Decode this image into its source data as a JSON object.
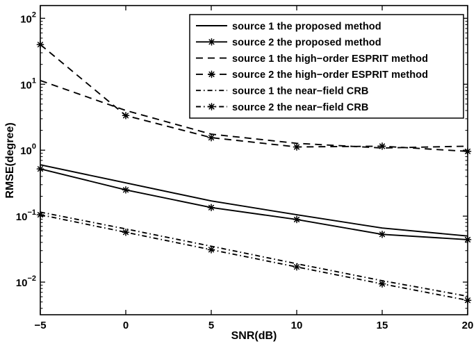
{
  "figure": {
    "background": "#ffffff",
    "line_color": "#000000",
    "xlabel": "SNR(dB)",
    "ylabel": "RMSE(degree)"
  },
  "chart_data": {
    "type": "line",
    "title": "",
    "xlabel": "SNR(dB)",
    "ylabel": "RMSE(degree)",
    "y_scale": "log",
    "grid": false,
    "legend_position": "upper-right-inside",
    "x": [
      -5,
      0,
      5,
      10,
      15,
      20
    ],
    "xlim": [
      -5,
      20
    ],
    "ylim": [
      0.0032,
      156
    ],
    "x_ticks": [
      -5,
      0,
      5,
      10,
      15,
      20
    ],
    "x_tick_labels": [
      "−5",
      "0",
      "5",
      "10",
      "15",
      "20"
    ],
    "y_ticks": [
      0.01,
      0.1,
      1,
      10,
      100
    ],
    "y_tick_base": "10",
    "y_tick_exponents": [
      "−2",
      "−1",
      "0",
      "1",
      "2"
    ],
    "series": [
      {
        "name": "source 1  the proposed method",
        "style": "solid",
        "marker": "none",
        "values": [
          0.6,
          0.32,
          0.17,
          0.105,
          0.066,
          0.05
        ]
      },
      {
        "name": "source 2  the proposed method",
        "style": "solid",
        "marker": "asterisk",
        "values": [
          0.52,
          0.25,
          0.135,
          0.089,
          0.053,
          0.044
        ]
      },
      {
        "name": "source 1  the high−order ESPRIT method",
        "style": "dashed",
        "marker": "none",
        "values": [
          11.4,
          4.0,
          1.75,
          1.27,
          1.08,
          1.15
        ]
      },
      {
        "name": "source 2  the high−order ESPRIT method",
        "style": "dashed",
        "marker": "asterisk",
        "values": [
          40.0,
          3.35,
          1.55,
          1.12,
          1.15,
          0.96
        ]
      },
      {
        "name": "source 1  the near−field CRB",
        "style": "dashdot",
        "marker": "none",
        "values": [
          0.115,
          0.064,
          0.035,
          0.019,
          0.0105,
          0.0061
        ]
      },
      {
        "name": "source 2  the near−field CRB",
        "style": "dashdot",
        "marker": "asterisk",
        "values": [
          0.105,
          0.057,
          0.031,
          0.017,
          0.0094,
          0.0053
        ]
      }
    ]
  }
}
